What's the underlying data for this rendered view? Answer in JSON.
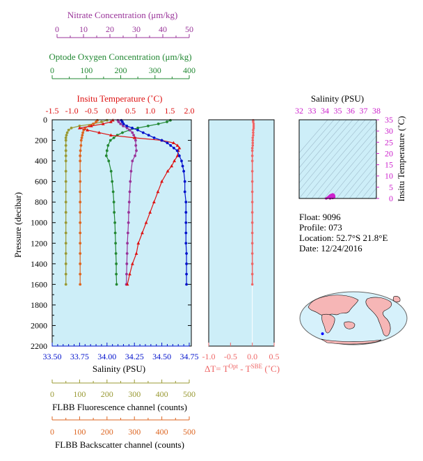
{
  "colors": {
    "nitrate": "#993399",
    "oxygen": "#228833",
    "temperature": "#dd1111",
    "salinity": "#0011cc",
    "dt": "#ee6666",
    "ts_axis": "#cc22cc",
    "fluorescence": "#999933",
    "backscatter": "#dd6622",
    "panel_bg": "#cdeef8"
  },
  "info": {
    "float": "Float:  9096",
    "profile": "Profile:  073",
    "location": "Location:  52.7°S  21.8°E",
    "date": "Date:  12/24/2016"
  },
  "chart_data": [
    {
      "type": "line",
      "name": "main-profile",
      "ylabel": "Pressure (decibar)",
      "ylim": [
        2200,
        0
      ],
      "yticks": [
        "0",
        "200",
        "400",
        "600",
        "800",
        "1000",
        "1200",
        "1400",
        "1600",
        "1800",
        "2000",
        "2200"
      ],
      "axes": {
        "nitrate": {
          "label": "Nitrate Concentration (μm/kg)",
          "range": [
            0,
            50
          ],
          "ticks": [
            "0",
            "10",
            "20",
            "30",
            "40",
            "50"
          ]
        },
        "oxygen": {
          "label": "Optode Oxygen Concentration (μm/kg)",
          "range": [
            0,
            400
          ],
          "ticks": [
            "0",
            "100",
            "200",
            "300",
            "400"
          ]
        },
        "temperature": {
          "label": "Insitu Temperature (˚C)",
          "range": [
            -1.5,
            2.0
          ],
          "ticks": [
            "-1.5",
            "-1.0",
            "-0.5",
            "0.0",
            "0.5",
            "1.0",
            "1.5",
            "2.0"
          ]
        },
        "salinity": {
          "label": "Salinity (PSU)",
          "range": [
            33.5,
            34.75
          ],
          "ticks": [
            "33.50",
            "33.75",
            "34.00",
            "34.25",
            "34.50",
            "34.75"
          ]
        },
        "fluorescence": {
          "label": "FLBB Fluorescence channel (counts)",
          "range": [
            0,
            500
          ],
          "ticks": [
            "0",
            "100",
            "200",
            "300",
            "400",
            "500"
          ]
        },
        "backscatter": {
          "label": "FLBB Backscatter channel (counts)",
          "range": [
            0,
            500
          ],
          "ticks": [
            "0",
            "100",
            "200",
            "300",
            "400",
            "500"
          ]
        }
      },
      "series": [
        {
          "name": "salinity",
          "axis": "salinity",
          "marker": "circle",
          "pressure": [
            5,
            20,
            40,
            60,
            80,
            100,
            125,
            150,
            175,
            200,
            225,
            250,
            275,
            300,
            350,
            400,
            450,
            500,
            600,
            700,
            800,
            900,
            1000,
            1100,
            1200,
            1300,
            1400,
            1500,
            1600
          ],
          "values": [
            34.13,
            34.14,
            34.15,
            34.18,
            34.23,
            34.28,
            34.33,
            34.38,
            34.43,
            34.5,
            34.55,
            34.58,
            34.61,
            34.64,
            34.66,
            34.68,
            34.69,
            34.7,
            34.71,
            34.71,
            34.72,
            34.72,
            34.72,
            34.72,
            34.72,
            34.725,
            34.725,
            34.725,
            34.725
          ]
        },
        {
          "name": "temperature",
          "axis": "temperature",
          "marker": "triangle",
          "pressure": [
            5,
            20,
            40,
            60,
            80,
            100,
            125,
            150,
            175,
            200,
            225,
            250,
            275,
            300,
            350,
            400,
            450,
            500,
            600,
            700,
            800,
            900,
            1000,
            1100,
            1200,
            1300,
            1400,
            1500,
            1600
          ],
          "values": [
            0.05,
            0.0,
            -0.2,
            -0.5,
            -0.8,
            -0.6,
            -0.3,
            0.0,
            0.6,
            1.3,
            1.6,
            1.7,
            1.75,
            1.72,
            1.7,
            1.62,
            1.55,
            1.45,
            1.3,
            1.2,
            1.1,
            1.0,
            0.9,
            0.8,
            0.7,
            0.65,
            0.55,
            0.48,
            0.42
          ]
        },
        {
          "name": "nitrate",
          "axis": "nitrate",
          "marker": "circle",
          "pressure": [
            5,
            20,
            40,
            60,
            80,
            100,
            125,
            150,
            175,
            200,
            250,
            300,
            350,
            400,
            500,
            600,
            700,
            800,
            900,
            1000,
            1100,
            1200,
            1300,
            1400,
            1500,
            1600
          ],
          "values": [
            23.0,
            23.3,
            24.0,
            25.0,
            26.5,
            27.5,
            28.5,
            29.0,
            29.5,
            29.7,
            29.8,
            30.0,
            29.5,
            28.5,
            28.0,
            27.7,
            27.5,
            27.3,
            27.1,
            27.0,
            26.8,
            26.6,
            26.5,
            26.4,
            26.3,
            26.2
          ]
        },
        {
          "name": "oxygen",
          "axis": "oxygen",
          "marker": "circle",
          "pressure": [
            5,
            20,
            40,
            60,
            80,
            100,
            125,
            150,
            175,
            200,
            250,
            300,
            350,
            400,
            500,
            600,
            700,
            800,
            900,
            1000,
            1100,
            1200,
            1300,
            1400,
            1500,
            1600
          ],
          "values": [
            345,
            335,
            310,
            280,
            250,
            225,
            205,
            190,
            180,
            170,
            163,
            160,
            158,
            165,
            172,
            175,
            178,
            180,
            181,
            183,
            184,
            185,
            186,
            187,
            187,
            188
          ]
        },
        {
          "name": "fluorescence",
          "axis": "fluorescence",
          "marker": "circle",
          "pressure": [
            5,
            20,
            40,
            60,
            80,
            100,
            125,
            150,
            175,
            200,
            250,
            300,
            350,
            400,
            500,
            600,
            700,
            800,
            900,
            1000,
            1100,
            1200,
            1300,
            1400,
            1500,
            1600
          ],
          "values": [
            200,
            180,
            150,
            100,
            70,
            60,
            55,
            52,
            50,
            50,
            50,
            50,
            50,
            50,
            50,
            50,
            50,
            50,
            50,
            50,
            50,
            50,
            50,
            50,
            50,
            50
          ]
        },
        {
          "name": "backscatter",
          "axis": "backscatter",
          "marker": "circle",
          "pressure": [
            5,
            20,
            40,
            60,
            80,
            100,
            125,
            150,
            175,
            200,
            250,
            300,
            350,
            400,
            500,
            600,
            700,
            800,
            900,
            1000,
            1100,
            1200,
            1300,
            1400,
            1500,
            1600
          ],
          "values": [
            165,
            160,
            150,
            135,
            120,
            115,
            112,
            110,
            108,
            106,
            105,
            103,
            102,
            102,
            102,
            102,
            102,
            102,
            102,
            102,
            102,
            102,
            102,
            102,
            102,
            102
          ]
        }
      ]
    },
    {
      "type": "line",
      "name": "delta-t",
      "xlabel": "ΔT= T",
      "xlabel_sup1": "Opt",
      "xlabel_mid": " - T",
      "xlabel_sup2": "SBE",
      "xlabel_end": " (˚C)",
      "xlim": [
        -1.0,
        0.5
      ],
      "xticks": [
        "-1.0",
        "-0.5",
        "0.0",
        "0.5"
      ],
      "ylim": [
        2200,
        0
      ],
      "series": [
        {
          "name": "delta-t",
          "marker": "circle",
          "pressure": [
            5,
            20,
            40,
            60,
            80,
            100,
            125,
            150,
            175,
            200,
            225,
            250,
            275,
            300,
            350,
            400,
            500,
            600,
            700,
            800,
            900,
            1000,
            1100,
            1200,
            1300,
            1400,
            1500,
            1600
          ],
          "values": [
            0.02,
            0.02,
            0.03,
            0.03,
            0.03,
            0.02,
            0.02,
            0.02,
            0.01,
            0.01,
            0.01,
            0.01,
            0.0,
            0.0,
            0.0,
            0.0,
            0.0,
            0.0,
            0.0,
            0.0,
            0.0,
            0.0,
            0.0,
            0.0,
            0.0,
            0.0,
            0.0,
            0.0
          ]
        }
      ]
    },
    {
      "type": "scatter",
      "name": "ts-diagram",
      "xlabel": "Salinity (PSU)",
      "ylabel": "Insitu Temperature (˚C)",
      "xlim": [
        32,
        38
      ],
      "ylim": [
        0,
        35
      ],
      "xticks": [
        "32",
        "33",
        "34",
        "35",
        "36",
        "37",
        "38"
      ],
      "yticks": [
        "0",
        "5",
        "10",
        "15",
        "20",
        "25",
        "30",
        "35"
      ],
      "series": [
        {
          "name": "ts-points",
          "x": [
            34.1,
            34.2,
            34.3,
            34.4,
            34.5,
            34.6,
            34.65,
            34.7,
            34.72,
            34.72,
            34.6,
            34.4
          ],
          "y": [
            0.0,
            0.3,
            0.8,
            1.3,
            1.6,
            1.8,
            1.7,
            1.4,
            1.0,
            0.6,
            0.2,
            0.0
          ]
        }
      ]
    },
    {
      "type": "map",
      "name": "location-map",
      "marker": {
        "lat": -52.7,
        "lon": 21.8
      }
    }
  ]
}
